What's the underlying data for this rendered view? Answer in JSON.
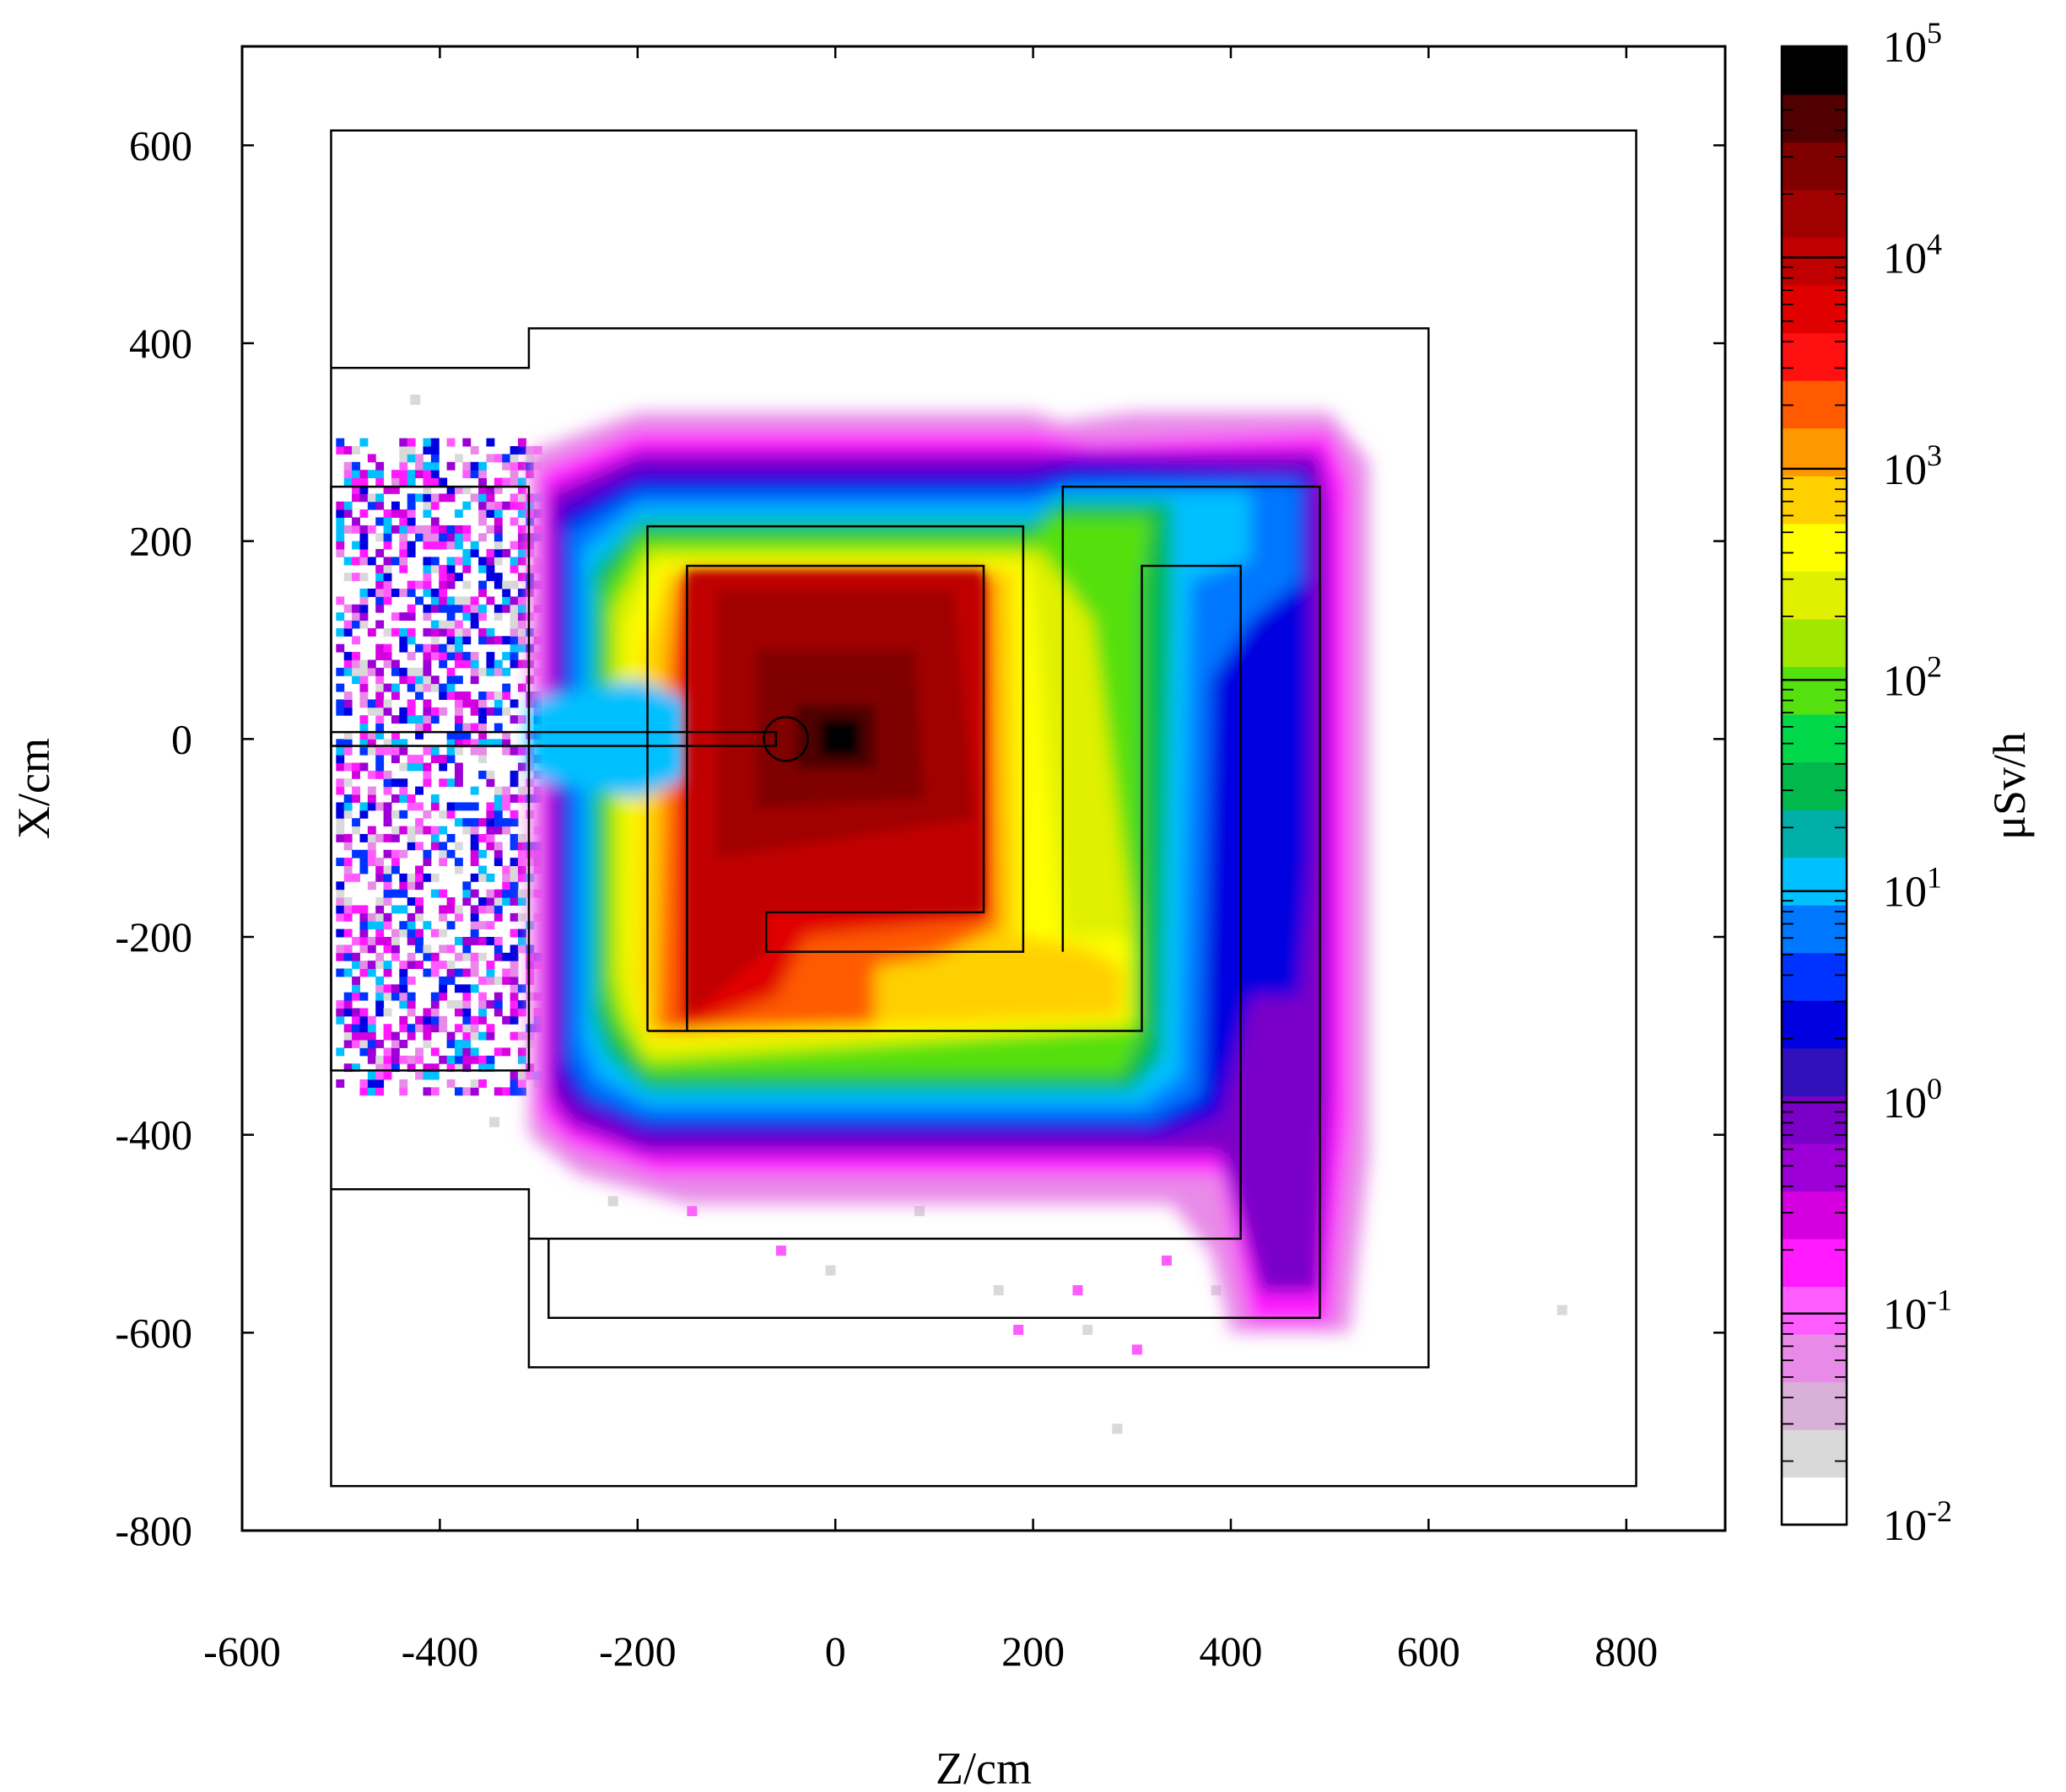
{
  "chart_data": {
    "type": "heatmap",
    "title": "",
    "xlabel": "Z/cm",
    "ylabel": "X/cm",
    "xlim": [
      -600,
      900
    ],
    "ylim": [
      -800,
      700
    ],
    "x_ticks": [
      "-600",
      "-400",
      "-200",
      "0",
      "200",
      "400",
      "600",
      "800"
    ],
    "y_ticks": [
      "600",
      "400",
      "200",
      "0",
      "-200",
      "-400",
      "-600",
      "-800"
    ],
    "colorbar": {
      "label": "μSv/h",
      "scale": "log",
      "range": [
        0.01,
        100000
      ],
      "ticks": [
        {
          "base": "10",
          "exp": "5"
        },
        {
          "base": "10",
          "exp": "4"
        },
        {
          "base": "10",
          "exp": "3"
        },
        {
          "base": "10",
          "exp": "2"
        },
        {
          "base": "10",
          "exp": "1"
        },
        {
          "base": "10",
          "exp": "0"
        },
        {
          "base": "10",
          "exp": "-1"
        },
        {
          "base": "10",
          "exp": "-2"
        }
      ],
      "colors": [
        "#ffffff",
        "#d9d9d9",
        "#d8b0d8",
        "#e88ae8",
        "#ff5cff",
        "#ff1aff",
        "#d400e0",
        "#9c00d6",
        "#7a00c8",
        "#3010b8",
        "#0000e0",
        "#0033ff",
        "#0077ff",
        "#00c0ff",
        "#00b0a8",
        "#00b84c",
        "#00d84a",
        "#55e010",
        "#a0e800",
        "#e0f000",
        "#ffff00",
        "#ffd000",
        "#ff9800",
        "#ff5a00",
        "#ff1010",
        "#e00000",
        "#c00000",
        "#a00000",
        "#800000",
        "#500000",
        "#000000"
      ]
    },
    "geometry_outlines_cm": [
      {
        "name": "outer-wall",
        "z": [
          -510,
          810
        ],
        "x": [
          -755,
          615
        ]
      },
      {
        "name": "inner-room",
        "polyline": [
          [
            -510,
            375
          ],
          [
            -310,
            375
          ],
          [
            -310,
            415
          ],
          [
            600,
            415
          ],
          [
            600,
            -635
          ],
          [
            -310,
            -635
          ],
          [
            -310,
            -455
          ],
          [
            -510,
            -455
          ]
        ]
      },
      {
        "name": "left-shield-block",
        "z": [
          -510,
          -310
        ],
        "x": [
          -335,
          255
        ]
      },
      {
        "name": "beam-pipe",
        "z": [
          -510,
          -60
        ],
        "x": [
          -7,
          7
        ]
      },
      {
        "name": "maze-wall-1",
        "polyline": [
          [
            -190,
            -295
          ],
          [
            -190,
            215
          ],
          [
            190,
            215
          ],
          [
            190,
            -215
          ],
          [
            -70,
            -215
          ],
          [
            -70,
            -175
          ],
          [
            150,
            -175
          ],
          [
            150,
            175
          ],
          [
            -150,
            175
          ],
          [
            -150,
            -295
          ]
        ]
      },
      {
        "name": "maze-wall-2",
        "polyline": [
          [
            -190,
            -295
          ],
          [
            310,
            -295
          ],
          [
            310,
            175
          ],
          [
            410,
            175
          ],
          [
            410,
            -505
          ],
          [
            -310,
            -505
          ]
        ]
      },
      {
        "name": "maze-wall-3",
        "polyline": [
          [
            230,
            -215
          ],
          [
            230,
            255
          ],
          [
            490,
            255
          ],
          [
            490,
            -585
          ],
          [
            -290,
            -585
          ],
          [
            -290,
            -505
          ]
        ]
      }
    ],
    "dose_description": "Peak dose near (Z=0, X=0) at ~1e5 μSv/h; red region (1e4) fills inner room between Z≈-150..150, X≈-300..175; yellow/green (1e2-1e3) in maze corridor Z≈190..310; blue/purple (1e0-1e1) in outer corridor Z≈410..490; scattered magenta/grey (1e-1 to 1e-2) to the left of Z=-310 and below X=-500."
  }
}
